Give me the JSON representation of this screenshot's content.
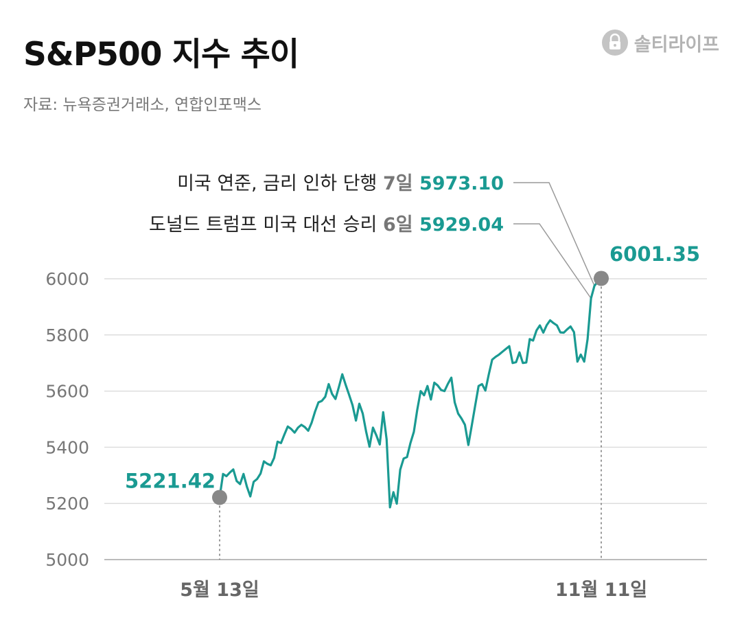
{
  "title": "S&P500 지수 추이",
  "source": "자료: 뉴욕증권거래소, 연합인포맥스",
  "brand": {
    "name": "솔티라이프"
  },
  "colors": {
    "line": "#1a9a92",
    "marker": "#888888",
    "grid": "#dddddd",
    "axis_text": "#777777",
    "annotation_text": "#222222",
    "leader": "#999999"
  },
  "chart_data": {
    "type": "line",
    "title": "S&P500 지수 추이",
    "ylim": [
      5000,
      6000
    ],
    "yticks": [
      6000,
      5800,
      5600,
      5400,
      5200,
      5000
    ],
    "xticks": [
      "5월 13일",
      "11월 11일"
    ],
    "grid": true,
    "series": [
      {
        "values": [
          5221.42,
          5305,
          5297,
          5310,
          5321,
          5280,
          5269,
          5305,
          5260,
          5225,
          5277,
          5287,
          5306,
          5350,
          5341,
          5336,
          5362,
          5420,
          5415,
          5445,
          5474,
          5465,
          5452,
          5470,
          5480,
          5472,
          5459,
          5487,
          5527,
          5560,
          5565,
          5580,
          5625,
          5590,
          5572,
          5615,
          5660,
          5622,
          5587,
          5550,
          5495,
          5555,
          5520,
          5455,
          5402,
          5470,
          5442,
          5410,
          5525,
          5428,
          5186,
          5240,
          5199,
          5320,
          5360,
          5365,
          5415,
          5455,
          5533,
          5600,
          5585,
          5618,
          5570,
          5630,
          5620,
          5604,
          5600,
          5626,
          5648,
          5560,
          5520,
          5502,
          5480,
          5408,
          5478,
          5548,
          5618,
          5625,
          5602,
          5660,
          5712,
          5722,
          5730,
          5740,
          5750,
          5760,
          5700,
          5703,
          5738,
          5700,
          5702,
          5785,
          5780,
          5816,
          5834,
          5808,
          5835,
          5852,
          5842,
          5834,
          5809,
          5808,
          5820,
          5830,
          5810,
          5705,
          5730,
          5705,
          5785,
          5930,
          5975,
          5990,
          6001.35
        ]
      }
    ],
    "annotations": {
      "start": {
        "label": "5221.42"
      },
      "end": {
        "label": "6001.35"
      },
      "events": [
        {
          "text": "미국 연준, 금리 인하 단행",
          "day": "7일",
          "value": "5973.10"
        },
        {
          "text": "도널드 트럼프 미국 대선 승리",
          "day": "6일",
          "value": "5929.04"
        }
      ]
    }
  }
}
